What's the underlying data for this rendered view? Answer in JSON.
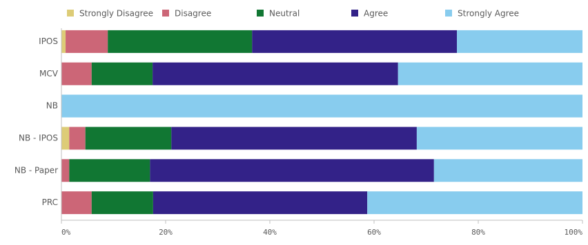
{
  "chart_data": {
    "type": "stacked-bar-horizontal",
    "categories": [
      "IPOS",
      "MCV",
      "NB",
      "NB - IPOS",
      "NB - Paper",
      "PRC"
    ],
    "series": [
      {
        "name": "Strongly Disagree",
        "color": "#ddcc77",
        "values": [
          0.8,
          0,
          0,
          1.5,
          0,
          0
        ]
      },
      {
        "name": "Disagree",
        "color": "#cc6677",
        "values": [
          8.1,
          5.8,
          0,
          3.1,
          1.5,
          5.8
        ]
      },
      {
        "name": "Neutral",
        "color": "#117733",
        "values": [
          27.7,
          11.7,
          0,
          16.5,
          15.5,
          11.8
        ]
      },
      {
        "name": "Agree",
        "color": "#332288",
        "values": [
          39.3,
          47.1,
          0,
          47.1,
          54.5,
          41.1
        ]
      },
      {
        "name": "Strongly Agree",
        "color": "#88ccee",
        "values": [
          24.1,
          35.4,
          100,
          31.8,
          28.5,
          41.3
        ]
      }
    ],
    "xlim": [
      0,
      100
    ],
    "xticks": [
      {
        "value": 0,
        "label": "0%"
      },
      {
        "value": 20,
        "label": "20%"
      },
      {
        "value": 40,
        "label": "40%"
      },
      {
        "value": 60,
        "label": "60%"
      },
      {
        "value": 80,
        "label": "80%"
      },
      {
        "value": 100,
        "label": "100%"
      }
    ]
  }
}
